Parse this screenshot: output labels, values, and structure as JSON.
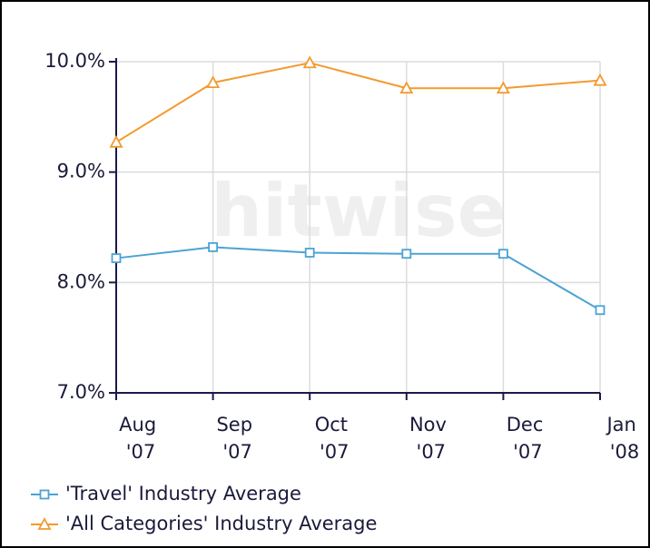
{
  "chart_data": {
    "type": "line",
    "watermark": "hitwise",
    "categories": [
      "Aug '07",
      "Sep '07",
      "Oct '07",
      "Nov '07",
      "Dec '07",
      "Jan '08"
    ],
    "series": [
      {
        "name": "'Travel' Industry Average",
        "color": "#4ba3d3",
        "marker": "square",
        "values": [
          8.22,
          8.32,
          8.27,
          8.26,
          8.26,
          7.75
        ]
      },
      {
        "name": "'All Categories' Industry Average",
        "color": "#f39a2e",
        "marker": "triangle",
        "values": [
          9.27,
          9.81,
          9.99,
          9.76,
          9.76,
          9.83
        ]
      }
    ],
    "ylim": [
      7,
      10
    ],
    "yticks": [
      {
        "value": 7,
        "label": "7.0%"
      },
      {
        "value": 8,
        "label": "8.0%"
      },
      {
        "value": 9,
        "label": "9.0%"
      },
      {
        "value": 10,
        "label": "10.0%"
      }
    ],
    "grid": true
  }
}
